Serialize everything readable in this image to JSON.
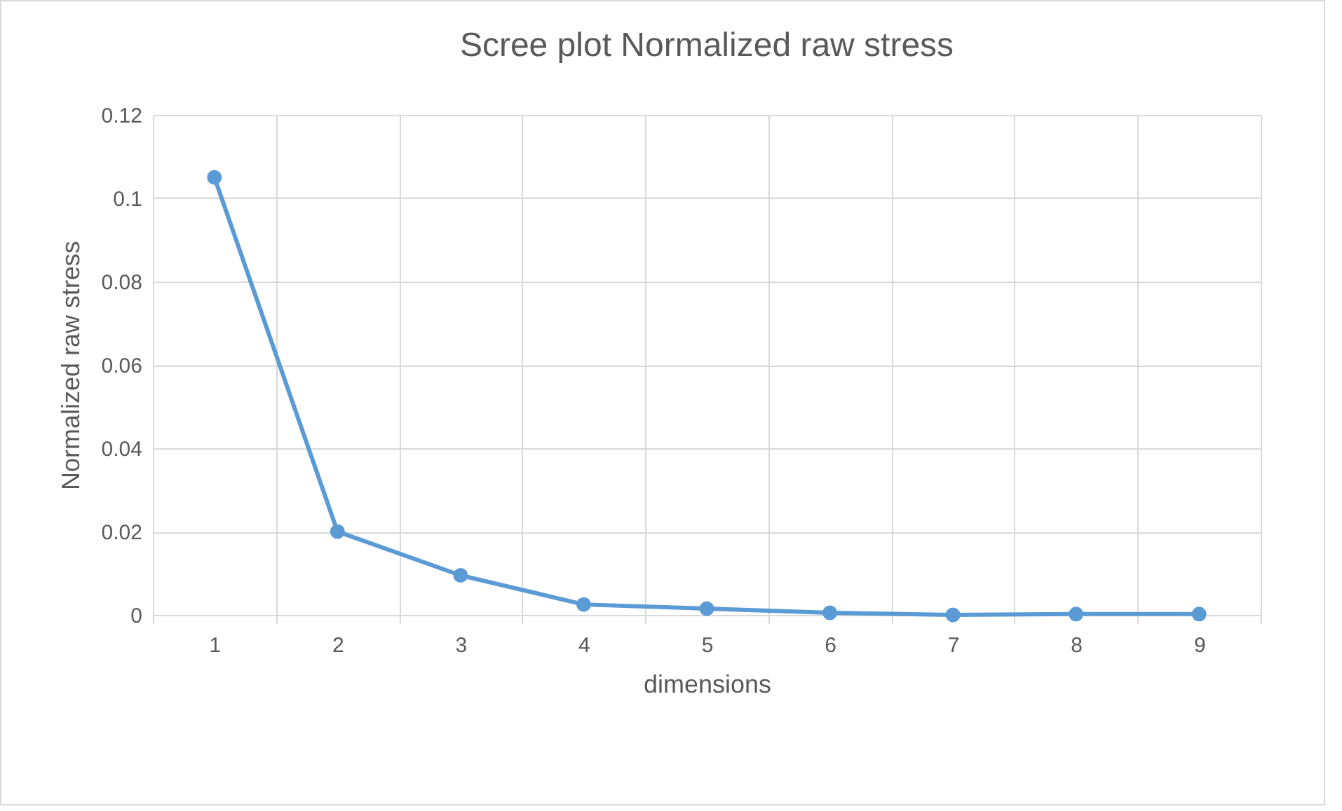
{
  "chart_data": {
    "type": "line",
    "title": "Scree plot Normalized raw stress",
    "xlabel": "dimensions",
    "ylabel": "Normalized raw stress",
    "categories": [
      "1",
      "2",
      "3",
      "4",
      "5",
      "6",
      "7",
      "8",
      "9"
    ],
    "series": [
      {
        "color": "#5b9bd5",
        "values": [
          0.105,
          0.02,
          0.0095,
          0.0025,
          0.0015,
          0.0005,
          0,
          0.0002,
          0.0002
        ]
      }
    ],
    "ylim": [
      0,
      0.12
    ],
    "yticks": [
      0,
      0.02,
      0.04,
      0.06,
      0.08,
      0.1,
      0.12
    ],
    "grid": true,
    "marker": "circle",
    "line_style": "solid"
  }
}
